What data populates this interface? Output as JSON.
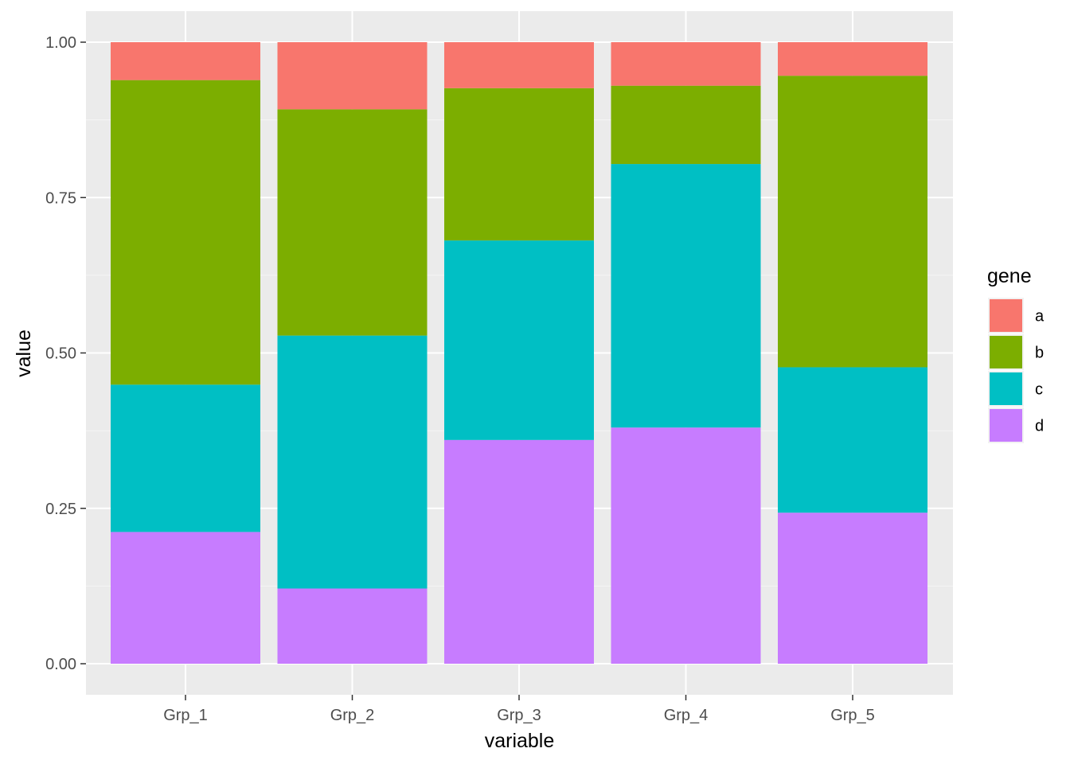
{
  "chart_data": {
    "type": "bar",
    "stacked": true,
    "xlabel": "variable",
    "ylabel": "value",
    "ylim": [
      0,
      1
    ],
    "yticks": [
      0,
      0.25,
      0.5,
      0.75,
      1
    ],
    "ytick_labels": [
      "0.00",
      "0.25",
      "0.50",
      "0.75",
      "1.00"
    ],
    "categories": [
      "Grp_1",
      "Grp_2",
      "Grp_3",
      "Grp_4",
      "Grp_5"
    ],
    "grid": true,
    "legend": {
      "title": "gene",
      "position": "right"
    },
    "series": [
      {
        "name": "a",
        "color": "#F8766D",
        "values": [
          0.061,
          0.108,
          0.074,
          0.07,
          0.054
        ]
      },
      {
        "name": "b",
        "color": "#7CAE00",
        "values": [
          0.49,
          0.364,
          0.245,
          0.126,
          0.469
        ]
      },
      {
        "name": "c",
        "color": "#00BFC4",
        "values": [
          0.237,
          0.407,
          0.321,
          0.424,
          0.234
        ]
      },
      {
        "name": "d",
        "color": "#C77CFF",
        "values": [
          0.212,
          0.121,
          0.36,
          0.38,
          0.243
        ]
      }
    ]
  },
  "colors": {
    "panel_background": "#EBEBEB",
    "grid_major": "#FFFFFF",
    "grid_minor": "#F5F5F5",
    "axis_text": "#4D4D4D",
    "title_text": "#000000",
    "tick_mark": "#333333"
  }
}
